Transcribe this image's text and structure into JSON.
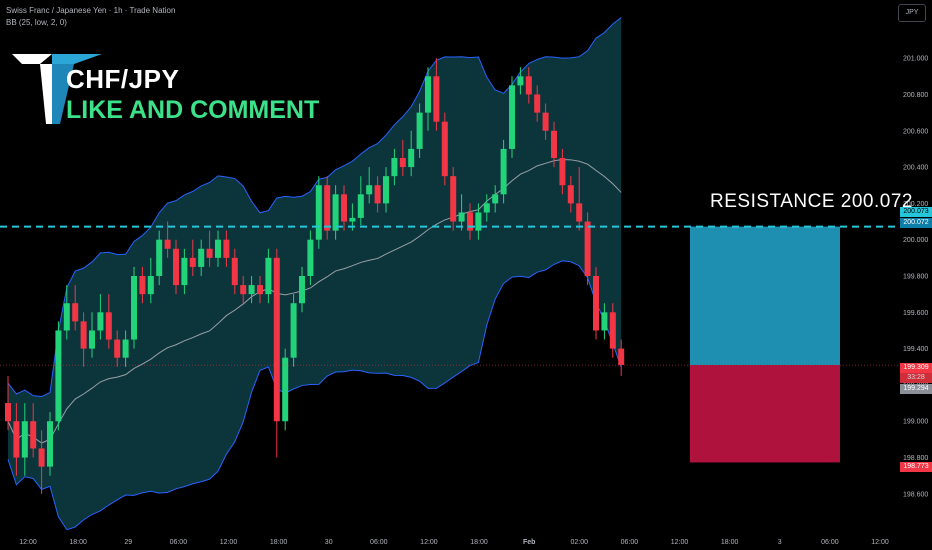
{
  "header": {
    "symbol_line": "Swiss Franc / Japanese Yen · 1h · Trade Nation",
    "indicator_line": "BB (25, low, 2, 0)"
  },
  "currency_button": "JPY",
  "overlay": {
    "pair": "CHF/JPY",
    "call_to_action": "LIKE AND COMMENT",
    "resistance_label": "RESISTANCE  200.072"
  },
  "price_tags": {
    "resistance_a": "200.073",
    "resistance_b": "200.072",
    "last_price": "199.309",
    "countdown": "33:28",
    "bb_lower": "199.294",
    "target": "198.773"
  },
  "colors": {
    "up": "#26a69a",
    "up_bright": "#22d37a",
    "down": "#f23645",
    "band_fill": "#0d3b41",
    "band_line": "#2962ff",
    "basis": "#9aa0a6",
    "resistance_line": "#26c6da",
    "target_zone": "#1e8fb0",
    "stop_zone": "#b0123e"
  },
  "chart_data": {
    "type": "candlestick",
    "y_axis": {
      "min": 198.5,
      "max": 201.1,
      "ticks": [
        "201.000",
        "200.800",
        "200.600",
        "200.400",
        "200.200",
        "200.000",
        "199.800",
        "199.600",
        "199.400",
        "199.200",
        "199.000",
        "198.800",
        "198.600"
      ]
    },
    "x_axis": {
      "ticks": [
        "12:00",
        "18:00",
        "29",
        "06:00",
        "12:00",
        "18:00",
        "30",
        "06:00",
        "12:00",
        "18:00",
        "Feb",
        "02:00",
        "06:00",
        "12:00",
        "18:00",
        "3",
        "06:00",
        "12:00"
      ]
    },
    "resistance": 200.072,
    "last_price": 199.309,
    "target": 198.773,
    "candles": [
      [
        199.1,
        199.0,
        199.25,
        198.95
      ],
      [
        199.0,
        198.8,
        199.1,
        198.7
      ],
      [
        198.8,
        199.0,
        199.1,
        198.7
      ],
      [
        199.0,
        198.85,
        199.1,
        198.8
      ],
      [
        198.85,
        198.75,
        198.95,
        198.6
      ],
      [
        198.75,
        199.0,
        199.05,
        198.7
      ],
      [
        199.0,
        199.5,
        199.55,
        198.95
      ],
      [
        199.5,
        199.65,
        199.75,
        199.45
      ],
      [
        199.65,
        199.55,
        199.75,
        199.5
      ],
      [
        199.55,
        199.4,
        199.6,
        199.3
      ],
      [
        199.4,
        199.5,
        199.6,
        199.35
      ],
      [
        199.5,
        199.6,
        199.7,
        199.45
      ],
      [
        199.6,
        199.45,
        199.7,
        199.4
      ],
      [
        199.45,
        199.35,
        199.5,
        199.3
      ],
      [
        199.35,
        199.45,
        199.5,
        199.3
      ],
      [
        199.45,
        199.8,
        199.85,
        199.4
      ],
      [
        199.8,
        199.7,
        199.85,
        199.65
      ],
      [
        199.7,
        199.8,
        199.9,
        199.65
      ],
      [
        199.8,
        200.0,
        200.05,
        199.75
      ],
      [
        200.0,
        199.95,
        200.1,
        199.9
      ],
      [
        199.95,
        199.75,
        200.0,
        199.7
      ],
      [
        199.75,
        199.9,
        199.95,
        199.7
      ],
      [
        199.9,
        199.85,
        200.0,
        199.8
      ],
      [
        199.85,
        199.95,
        200.0,
        199.8
      ],
      [
        199.95,
        199.9,
        200.05,
        199.85
      ],
      [
        199.9,
        200.0,
        200.05,
        199.85
      ],
      [
        200.0,
        199.9,
        200.05,
        199.85
      ],
      [
        199.9,
        199.75,
        199.95,
        199.7
      ],
      [
        199.75,
        199.7,
        199.8,
        199.65
      ],
      [
        199.7,
        199.75,
        199.8,
        199.65
      ],
      [
        199.75,
        199.7,
        199.8,
        199.65
      ],
      [
        199.7,
        199.9,
        199.95,
        199.65
      ],
      [
        199.9,
        199.0,
        199.95,
        198.8
      ],
      [
        199.0,
        199.35,
        199.4,
        198.95
      ],
      [
        199.35,
        199.65,
        199.7,
        199.3
      ],
      [
        199.65,
        199.8,
        199.85,
        199.6
      ],
      [
        199.8,
        200.0,
        200.05,
        199.75
      ],
      [
        200.0,
        200.3,
        200.35,
        199.95
      ],
      [
        200.3,
        200.05,
        200.35,
        200.0
      ],
      [
        200.05,
        200.25,
        200.3,
        200.0
      ],
      [
        200.25,
        200.1,
        200.3,
        200.05
      ],
      [
        200.1,
        200.12,
        200.2,
        200.05
      ],
      [
        200.12,
        200.25,
        200.35,
        200.08
      ],
      [
        200.25,
        200.3,
        200.4,
        200.2
      ],
      [
        200.3,
        200.2,
        200.35,
        200.15
      ],
      [
        200.2,
        200.35,
        200.4,
        200.15
      ],
      [
        200.35,
        200.45,
        200.5,
        200.3
      ],
      [
        200.45,
        200.4,
        200.55,
        200.35
      ],
      [
        200.4,
        200.5,
        200.6,
        200.35
      ],
      [
        200.5,
        200.7,
        200.75,
        200.45
      ],
      [
        200.7,
        200.9,
        200.95,
        200.6
      ],
      [
        200.9,
        200.65,
        201.0,
        200.6
      ],
      [
        200.65,
        200.35,
        200.7,
        200.3
      ],
      [
        200.35,
        200.1,
        200.4,
        200.05
      ],
      [
        200.1,
        200.15,
        200.25,
        200.05
      ],
      [
        200.15,
        200.05,
        200.2,
        200.0
      ],
      [
        200.05,
        200.15,
        200.2,
        200.0
      ],
      [
        200.15,
        200.2,
        200.25,
        200.1
      ],
      [
        200.2,
        200.25,
        200.3,
        200.15
      ],
      [
        200.25,
        200.5,
        200.55,
        200.2
      ],
      [
        200.5,
        200.85,
        200.9,
        200.45
      ],
      [
        200.85,
        200.9,
        200.95,
        200.8
      ],
      [
        200.9,
        200.8,
        200.95,
        200.75
      ],
      [
        200.8,
        200.7,
        200.85,
        200.65
      ],
      [
        200.7,
        200.6,
        200.75,
        200.55
      ],
      [
        200.6,
        200.45,
        200.65,
        200.4
      ],
      [
        200.45,
        200.3,
        200.5,
        200.25
      ],
      [
        200.3,
        200.2,
        200.35,
        200.15
      ],
      [
        200.2,
        200.1,
        200.4,
        200.05
      ],
      [
        200.1,
        199.8,
        200.15,
        199.75
      ],
      [
        199.8,
        199.5,
        199.85,
        199.45
      ],
      [
        199.5,
        199.6,
        199.65,
        199.45
      ],
      [
        199.6,
        199.4,
        199.65,
        199.35
      ],
      [
        199.4,
        199.31,
        199.45,
        199.25
      ]
    ]
  }
}
